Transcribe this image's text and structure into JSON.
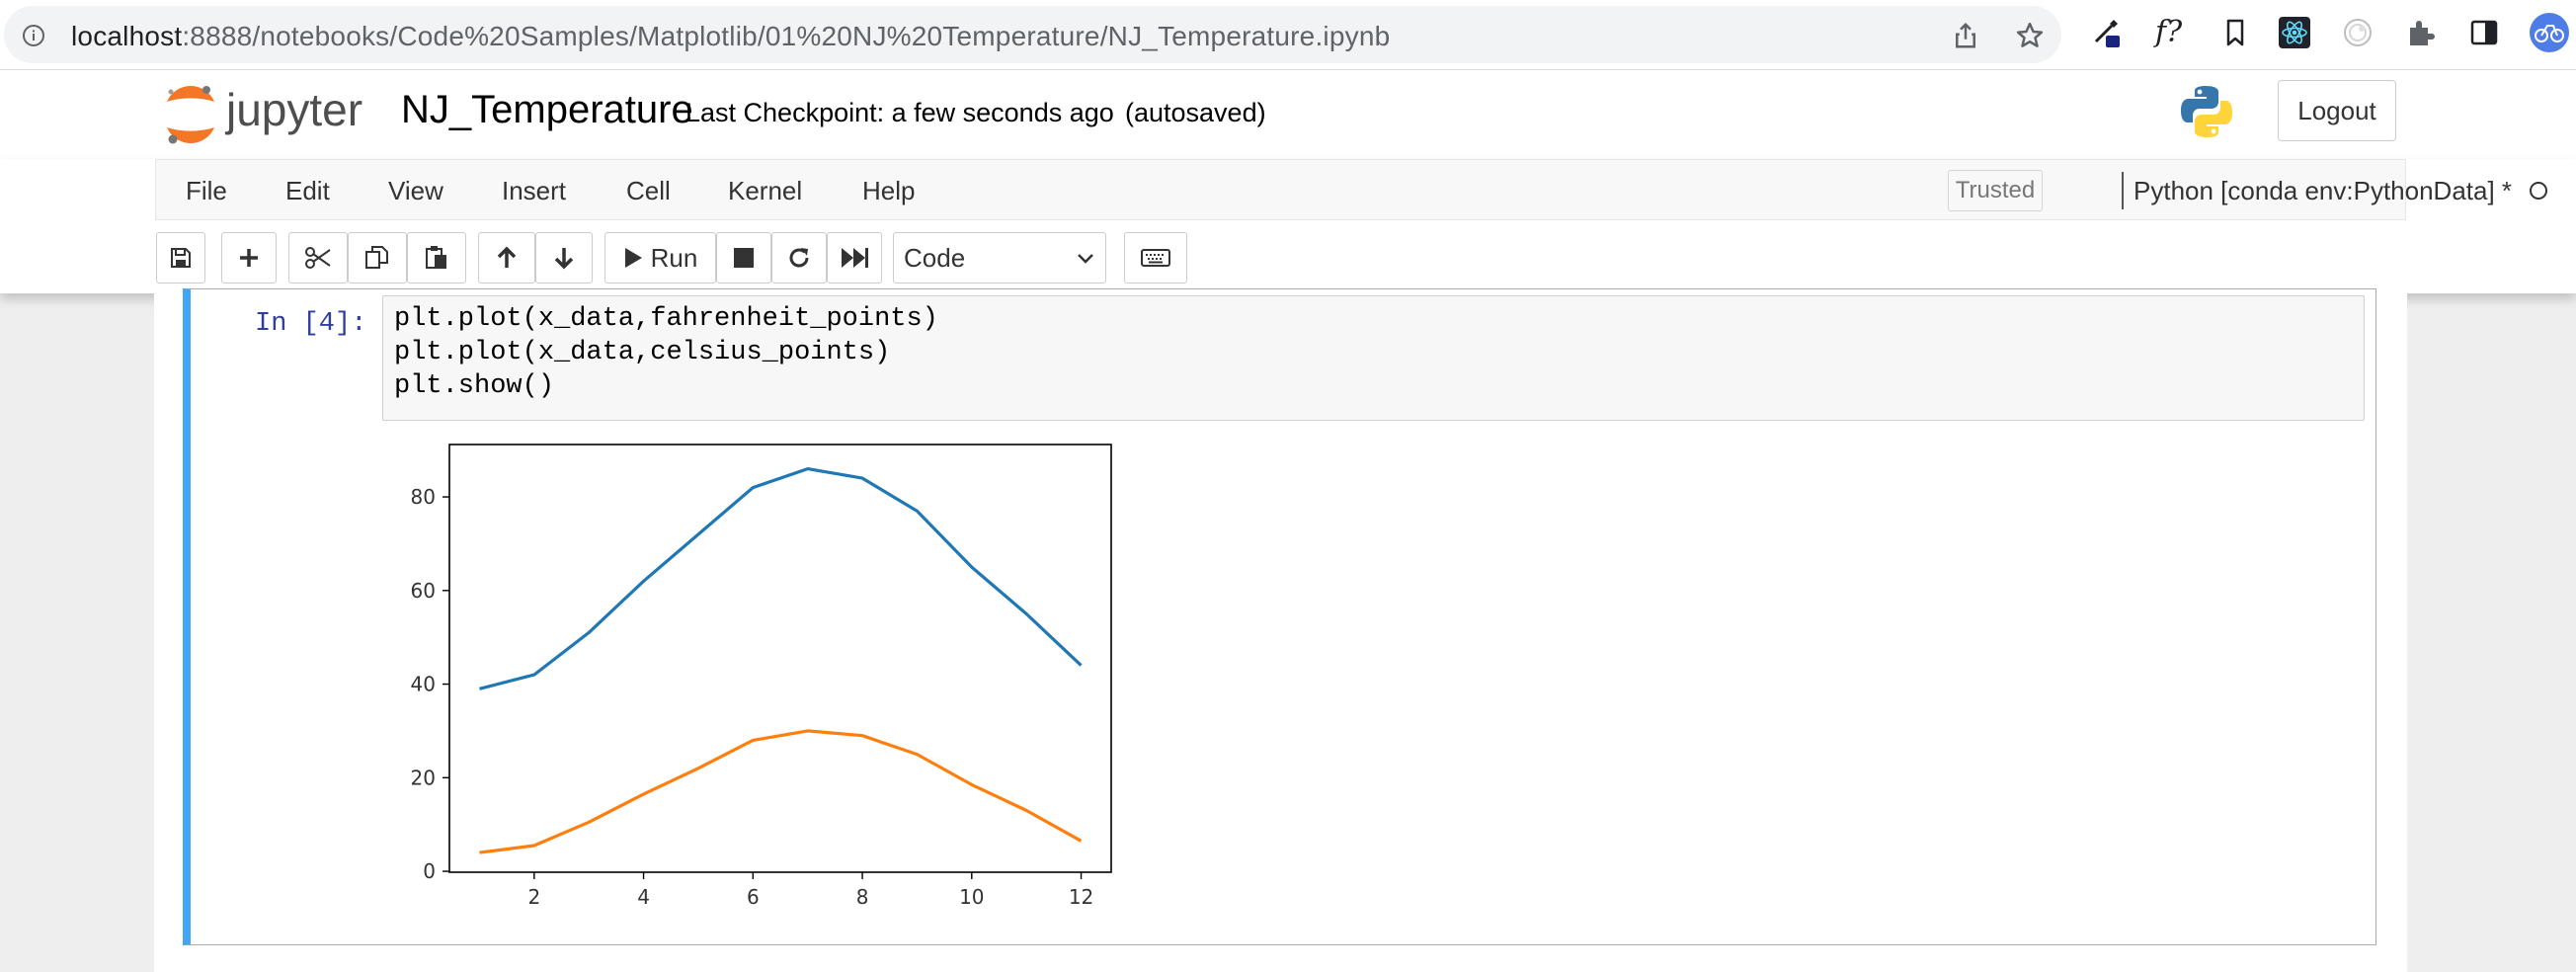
{
  "browser": {
    "url_host": "localhost",
    "url_rest": ":8888/notebooks/Code%20Samples/Matplotlib/01%20NJ%20Temperature/NJ_Temperature.ipynb",
    "ext_fx_label": "f?"
  },
  "header": {
    "logo_text": "jupyter",
    "notebook_title": "NJ_Temperature",
    "checkpoint_text": "Last Checkpoint: a few seconds ago",
    "autosave_text": "(autosaved)",
    "logout_label": "Logout"
  },
  "menu": {
    "items": [
      "File",
      "Edit",
      "View",
      "Insert",
      "Cell",
      "Kernel",
      "Help"
    ],
    "trusted_label": "Trusted",
    "kernel_label": "Python [conda env:PythonData] *"
  },
  "toolbar": {
    "run_label": "Run",
    "cell_type_value": "Code"
  },
  "cell": {
    "prompt": "In [4]:",
    "code_lines": [
      "plt.plot(x_data,fahrenheit_points)",
      "plt.plot(x_data,celsius_points)",
      "plt.show()"
    ]
  },
  "colors": {
    "selected_cell_bar": "#42a5f5",
    "series_fahrenheit": "#1f77b4",
    "series_celsius": "#ff7f0e"
  },
  "chart_data": {
    "type": "line",
    "title": "",
    "xlabel": "",
    "ylabel": "",
    "x": [
      1,
      2,
      3,
      4,
      5,
      6,
      7,
      8,
      9,
      10,
      11,
      12
    ],
    "xticks": [
      2,
      4,
      6,
      8,
      10,
      12
    ],
    "yticks": [
      0,
      20,
      40,
      60,
      80
    ],
    "xlim": [
      0.45,
      12.55
    ],
    "ylim": [
      -0.2,
      91.2
    ],
    "grid": false,
    "legend": false,
    "series": [
      {
        "values": [
          39,
          42,
          51,
          62,
          72,
          82,
          86,
          84,
          77,
          65,
          55,
          44
        ],
        "color": "#1f77b4"
      },
      {
        "values": [
          4,
          5.5,
          10.5,
          16.5,
          22,
          28,
          30,
          29,
          25,
          18.5,
          13,
          6.5
        ],
        "color": "#ff7f0e"
      }
    ]
  }
}
